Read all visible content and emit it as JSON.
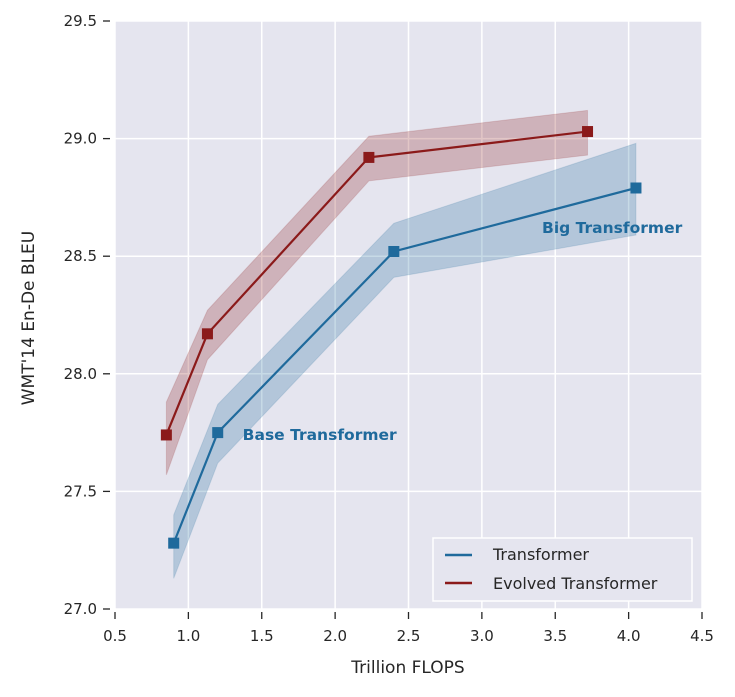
{
  "chart_data": {
    "type": "line",
    "title": "",
    "xlabel": "Trillion FLOPS",
    "ylabel": "WMT'14 En-De BLEU",
    "xlim": [
      0.5,
      4.5
    ],
    "ylim": [
      27.0,
      29.5
    ],
    "xticks": [
      "0.5",
      "1.0",
      "1.5",
      "2.0",
      "2.5",
      "3.0",
      "3.5",
      "4.0",
      "4.5"
    ],
    "yticks": [
      "27.0",
      "27.5",
      "28.0",
      "28.5",
      "29.0",
      "29.5"
    ],
    "grid": true,
    "legend_position": "lower right",
    "series": [
      {
        "name": "Transformer",
        "color": "#1f6a9c",
        "marker": "square",
        "x": [
          0.9,
          1.2,
          2.4,
          4.05
        ],
        "y": [
          27.28,
          27.75,
          28.52,
          28.79
        ],
        "band_upper": [
          27.4,
          27.87,
          28.64,
          28.98
        ],
        "band_lower": [
          27.13,
          27.62,
          28.41,
          28.59
        ]
      },
      {
        "name": "Evolved Transformer",
        "color": "#8b1a1a",
        "marker": "square",
        "x": [
          0.85,
          1.13,
          2.23,
          3.72
        ],
        "y": [
          27.74,
          28.17,
          28.92,
          29.03
        ],
        "band_upper": [
          27.88,
          28.27,
          29.01,
          29.12
        ],
        "band_lower": [
          27.57,
          28.06,
          28.82,
          28.93
        ]
      }
    ],
    "annotations": [
      {
        "text": "Base Transformer",
        "x": 1.37,
        "y": 27.74,
        "color": "#1f6a9c"
      },
      {
        "text": "Big Transformer",
        "x": 3.41,
        "y": 28.62,
        "color": "#1f6a9c"
      }
    ]
  },
  "legend": {
    "items": [
      {
        "label": "Transformer",
        "color": "#1f6a9c"
      },
      {
        "label": "Evolved Transformer",
        "color": "#8b1a1a"
      }
    ]
  },
  "style": {
    "plot_bg": "#e5e5ef",
    "grid_color": "#ffffff"
  }
}
